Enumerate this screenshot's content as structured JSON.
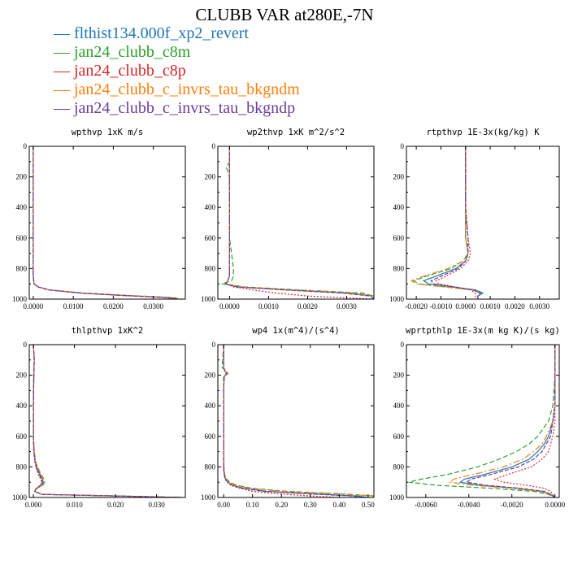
{
  "title": "CLUBB VAR at280E,-7N",
  "legend": [
    {
      "name": "flthist134.000f_xp2_revert",
      "color": "#1f77b4",
      "dash": ""
    },
    {
      "name": "jan24_clubb_c8m",
      "color": "#2ca02c",
      "dash": "6,3"
    },
    {
      "name": "jan24_clubb_c8p",
      "color": "#d62728",
      "dash": "2,2"
    },
    {
      "name": "jan24_clubb_c_invrs_tau_bkgndm",
      "color": "#ff7f0e",
      "dash": "8,3,2,3"
    },
    {
      "name": "jan24_clubb_c_invrs_tau_bkgndp",
      "color": "#6a3d9a",
      "dash": "5,2"
    }
  ],
  "chart_data": [
    {
      "type": "line",
      "title": "wpthvp  1xK m/s",
      "xlim": [
        -0.001,
        0.038
      ],
      "ylim": [
        1000,
        0
      ],
      "xticks": [
        "0.0000",
        "0.0100",
        "0.0200",
        "0.0300"
      ],
      "xtick_values": [
        0,
        0.01,
        0.02,
        0.03
      ],
      "yticks": [
        "0",
        "200",
        "400",
        "600",
        "800",
        "1000"
      ],
      "y": [
        0,
        100,
        200,
        300,
        400,
        500,
        600,
        700,
        800,
        850,
        900,
        920,
        940,
        960,
        975,
        990,
        1000
      ],
      "series": [
        {
          "values": [
            0,
            0,
            0,
            0,
            0,
            0,
            0,
            0,
            0,
            0,
            0.0002,
            0.0012,
            0.004,
            0.012,
            0.022,
            0.034,
            0.036
          ]
        },
        {
          "values": [
            0,
            0,
            0,
            0,
            0,
            0,
            0,
            0,
            0,
            0,
            0.0002,
            0.0013,
            0.0042,
            0.0125,
            0.023,
            0.035,
            0.037
          ]
        },
        {
          "values": [
            0,
            0,
            0,
            0,
            0,
            0,
            0,
            0,
            0,
            0,
            0.0002,
            0.0011,
            0.0038,
            0.0115,
            0.021,
            0.033,
            0.0355
          ]
        },
        {
          "values": [
            0,
            0,
            0,
            0,
            0,
            0,
            0,
            0,
            0,
            0,
            0.0002,
            0.0012,
            0.0041,
            0.0122,
            0.0225,
            0.0345,
            0.0365
          ]
        },
        {
          "values": [
            0,
            0,
            0,
            0,
            0,
            0,
            0,
            0,
            0,
            0,
            0.0002,
            0.0012,
            0.0039,
            0.0118,
            0.0215,
            0.0335,
            0.036
          ]
        }
      ]
    },
    {
      "type": "line",
      "title": "wp2thvp  1xK m^2/s^2",
      "xlim": [
        -0.0003,
        0.0037
      ],
      "ylim": [
        1000,
        0
      ],
      "xticks": [
        "0.0000",
        "0.0010",
        "0.0020",
        "0.0030"
      ],
      "xtick_values": [
        0,
        0.001,
        0.002,
        0.003
      ],
      "yticks": [
        "0",
        "200",
        "400",
        "600",
        "800",
        "1000"
      ],
      "y": [
        0,
        100,
        140,
        160,
        200,
        300,
        400,
        500,
        600,
        700,
        800,
        850,
        880,
        900,
        920,
        940,
        960,
        980,
        1000
      ],
      "series": [
        {
          "values": [
            0,
            0,
            0,
            0,
            0,
            0,
            0,
            0,
            0,
            0,
            0,
            0,
            -5e-05,
            -0.0001,
            0.0002,
            0.0015,
            0.003,
            0.0037,
            0.0037
          ]
        },
        {
          "values": [
            0,
            0,
            -8e-05,
            -5e-05,
            0,
            0,
            0,
            0,
            0,
            5e-05,
            0.0001,
            0.0001,
            5e-05,
            -0.0002,
            0.0004,
            0.0018,
            0.0034,
            0.0037,
            0.0037
          ]
        },
        {
          "values": [
            0,
            0,
            0,
            0,
            0,
            0,
            0,
            0,
            0,
            0,
            0,
            0,
            -5e-05,
            -0.0001,
            0.0001,
            0.0006,
            0.0012,
            0.002,
            0.0037
          ]
        },
        {
          "values": [
            0,
            0,
            0,
            0,
            0,
            0,
            0,
            0,
            0,
            0,
            0,
            0,
            -5e-05,
            -0.0001,
            0.0003,
            0.0017,
            0.0032,
            0.0037,
            0.0037
          ]
        },
        {
          "values": [
            0,
            0,
            0,
            0,
            0,
            0,
            0,
            0,
            0,
            0,
            0,
            0,
            -5e-05,
            -0.0001,
            0.0002,
            0.0014,
            0.0029,
            0.0036,
            0.0037
          ]
        }
      ]
    },
    {
      "type": "line",
      "title": "rtpthvp  1E-3x(kg/kg) K",
      "xlim": [
        -0.0024,
        0.0038
      ],
      "ylim": [
        1000,
        0
      ],
      "xticks": [
        "-0.0020",
        "-0.0010",
        "0.0000",
        "0.0010",
        "0.0020",
        "0.0030"
      ],
      "xtick_values": [
        -0.002,
        -0.001,
        0,
        0.001,
        0.002,
        0.003
      ],
      "yticks": [
        "0",
        "200",
        "400",
        "600",
        "800",
        "1000"
      ],
      "y": [
        0,
        200,
        400,
        600,
        700,
        750,
        800,
        850,
        880,
        900,
        920,
        940,
        960,
        980,
        1000
      ],
      "series": [
        {
          "values": [
            0,
            0,
            0,
            0,
            0.0001,
            0,
            -0.0004,
            -0.0012,
            -0.0017,
            -0.0015,
            -0.0005,
            0.0004,
            0.0007,
            0.0005,
            0.0005
          ]
        },
        {
          "values": [
            0,
            0,
            0,
            0,
            0.0001,
            -0.0001,
            -0.0006,
            -0.0016,
            -0.0021,
            -0.0019,
            -0.0008,
            0.0003,
            0.0006,
            0.0005,
            0.0005
          ]
        },
        {
          "values": [
            0,
            0,
            0,
            0.0001,
            0.0002,
            0.0001,
            -0.0002,
            -0.0008,
            -0.0012,
            -0.0011,
            -0.0004,
            0.0002,
            0.0004,
            0.0004,
            0.0004
          ]
        },
        {
          "values": [
            0,
            0,
            0,
            0,
            0.0001,
            -0.0001,
            -0.0007,
            -0.0017,
            -0.0022,
            -0.002,
            -0.0009,
            0.0003,
            0.0006,
            0.0005,
            0.0005
          ]
        },
        {
          "values": [
            0,
            0,
            0,
            0.0001,
            0.0001,
            0,
            -0.0003,
            -0.001,
            -0.0014,
            -0.0013,
            -0.0005,
            0.0003,
            0.0006,
            0.0005,
            0.0005
          ]
        }
      ]
    },
    {
      "type": "line",
      "title": "thlpthvp  1xK^2",
      "xlim": [
        -0.001,
        0.037
      ],
      "ylim": [
        1000,
        0
      ],
      "xticks": [
        "0.000",
        "0.010",
        "0.020",
        "0.030"
      ],
      "xtick_values": [
        0,
        0.01,
        0.02,
        0.03
      ],
      "yticks": [
        "0",
        "200",
        "400",
        "600",
        "800",
        "1000"
      ],
      "y": [
        0,
        100,
        200,
        400,
        600,
        700,
        760,
        800,
        850,
        880,
        900,
        920,
        940,
        960,
        980,
        990,
        1000
      ],
      "series": [
        {
          "values": [
            0,
            0.0002,
            0.0001,
            0,
            0,
            0.0002,
            0.0004,
            0.0008,
            0.0016,
            0.0022,
            0.0024,
            0.002,
            0.0008,
            0.0003,
            0.002,
            0.02,
            0.036
          ]
        },
        {
          "values": [
            0,
            0.0002,
            0.0001,
            0,
            0,
            0.0002,
            0.0005,
            0.001,
            0.0019,
            0.0026,
            0.0028,
            0.0023,
            0.0009,
            0.0003,
            0.002,
            0.02,
            0.036
          ]
        },
        {
          "values": [
            0,
            0.0002,
            0.0001,
            0,
            0,
            0.0001,
            0.0003,
            0.0006,
            0.0012,
            0.0018,
            0.002,
            0.0017,
            0.0007,
            0.0003,
            0.002,
            0.02,
            0.036
          ]
        },
        {
          "values": [
            0,
            0.0002,
            0.0001,
            0,
            0,
            0.0002,
            0.0005,
            0.0009,
            0.0018,
            0.0025,
            0.0027,
            0.0022,
            0.0009,
            0.0003,
            0.002,
            0.02,
            0.036
          ]
        },
        {
          "values": [
            0,
            0.0002,
            0.0001,
            0,
            0,
            0.0001,
            0.0004,
            0.0007,
            0.0014,
            0.002,
            0.0022,
            0.0018,
            0.0007,
            0.0003,
            0.002,
            0.02,
            0.036
          ]
        }
      ]
    },
    {
      "type": "line",
      "title": "wp4  1x(m^4)/(s^4)",
      "xlim": [
        -0.02,
        0.52
      ],
      "ylim": [
        1000,
        0
      ],
      "xticks": [
        "0.00",
        "0.10",
        "0.20",
        "0.30",
        "0.40",
        "0.50"
      ],
      "xtick_values": [
        0,
        0.1,
        0.2,
        0.3,
        0.4,
        0.5
      ],
      "yticks": [
        "0",
        "200",
        "400",
        "600",
        "800",
        "1000"
      ],
      "y": [
        0,
        150,
        170,
        190,
        210,
        300,
        500,
        700,
        800,
        850,
        880,
        900,
        920,
        940,
        960,
        975,
        990,
        1000
      ],
      "series": [
        {
          "values": [
            0,
            0,
            0.004,
            0.01,
            0.002,
            0,
            0,
            0,
            0,
            0.002,
            0.006,
            0.015,
            0.03,
            0.07,
            0.15,
            0.3,
            0.46,
            0.5
          ]
        },
        {
          "values": [
            0,
            -0.005,
            0.008,
            0.015,
            0,
            0,
            0,
            0,
            0.001,
            0.004,
            0.01,
            0.022,
            0.045,
            0.1,
            0.22,
            0.4,
            0.52,
            0.52
          ]
        },
        {
          "values": [
            0,
            0,
            0.004,
            0.01,
            0.002,
            0,
            0,
            0,
            0,
            0.002,
            0.005,
            0.012,
            0.025,
            0.055,
            0.1,
            0.18,
            0.3,
            0.4
          ]
        },
        {
          "values": [
            0,
            0,
            0.005,
            0.012,
            0.002,
            0,
            0,
            0,
            0.001,
            0.003,
            0.008,
            0.018,
            0.04,
            0.09,
            0.2,
            0.38,
            0.52,
            0.52
          ]
        },
        {
          "values": [
            0,
            0,
            0.004,
            0.01,
            0.002,
            0,
            0,
            0,
            0,
            0.002,
            0.006,
            0.014,
            0.03,
            0.065,
            0.14,
            0.28,
            0.44,
            0.49
          ]
        }
      ]
    },
    {
      "type": "line",
      "title": "wprtpthlp  1E-3x(m kg K)/(s kg)",
      "xlim": [
        -0.0069,
        0.0002
      ],
      "ylim": [
        1000,
        0
      ],
      "xticks": [
        "-0.0060",
        "-0.0040",
        "-0.0020",
        "0.0000"
      ],
      "xtick_values": [
        -0.006,
        -0.004,
        -0.002,
        0
      ],
      "yticks": [
        "0",
        "200",
        "400",
        "600",
        "800",
        "1000"
      ],
      "y": [
        0,
        200,
        400,
        500,
        600,
        650,
        700,
        750,
        800,
        850,
        880,
        900,
        920,
        940,
        960,
        980,
        1000
      ],
      "series": [
        {
          "values": [
            0,
            0,
            0,
            -0.0001,
            -0.0003,
            -0.0005,
            -0.0008,
            -0.0012,
            -0.002,
            -0.0033,
            -0.0042,
            -0.0044,
            -0.0035,
            -0.0018,
            -0.0006,
            -0.0002,
            0
          ]
        },
        {
          "values": [
            0,
            0,
            -0.0001,
            -0.0003,
            -0.0008,
            -0.0012,
            -0.0018,
            -0.0026,
            -0.0036,
            -0.005,
            -0.0062,
            -0.0068,
            -0.0055,
            -0.003,
            -0.001,
            -0.0003,
            0
          ]
        },
        {
          "values": [
            0,
            0,
            0,
            0,
            -0.0001,
            -0.0002,
            -0.0003,
            -0.0006,
            -0.0011,
            -0.0022,
            -0.0028,
            -0.0024,
            -0.0013,
            -0.0005,
            -0.0002,
            -0.0001,
            0
          ]
        },
        {
          "values": [
            0,
            0,
            0,
            -0.0001,
            -0.0004,
            -0.0006,
            -0.001,
            -0.0015,
            -0.0024,
            -0.0038,
            -0.0047,
            -0.0049,
            -0.0038,
            -0.002,
            -0.0007,
            -0.0002,
            0
          ]
        },
        {
          "values": [
            0,
            0,
            0,
            -0.0001,
            -0.0002,
            -0.0004,
            -0.0006,
            -0.001,
            -0.0017,
            -0.003,
            -0.0039,
            -0.0041,
            -0.0032,
            -0.0016,
            -0.0005,
            -0.0002,
            0
          ]
        }
      ]
    }
  ]
}
